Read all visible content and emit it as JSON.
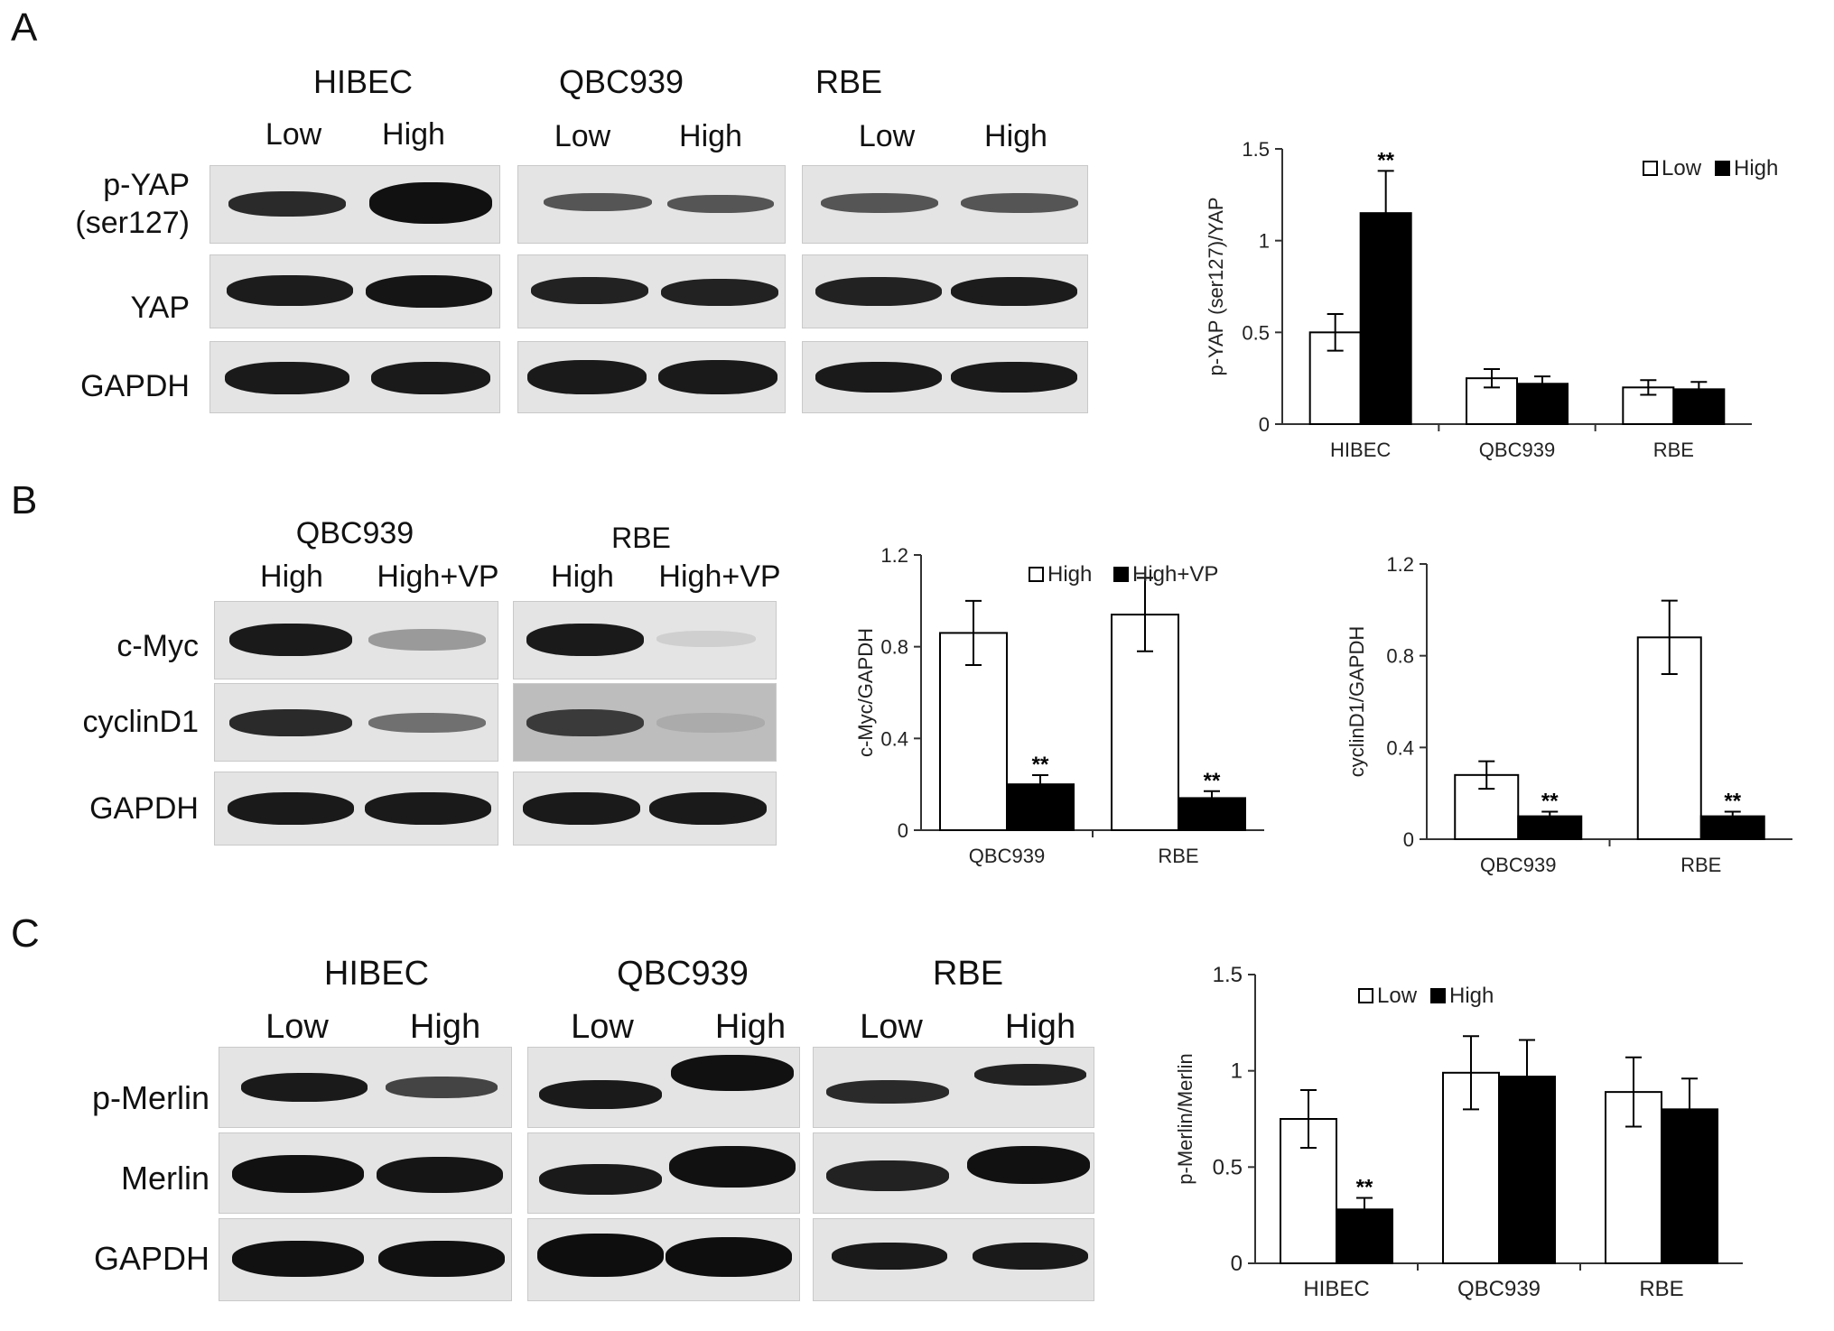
{
  "panels": [
    {
      "letter": "A",
      "groups": [
        {
          "name": "HIBEC",
          "lanes": [
            "Low",
            "High"
          ]
        },
        {
          "name": "QBC939",
          "lanes": [
            "Low",
            "High"
          ]
        },
        {
          "name": "RBE",
          "lanes": [
            "Low",
            "High"
          ]
        }
      ],
      "rows": [
        "p-YAP\n(ser127)",
        "YAP",
        "GAPDH"
      ]
    },
    {
      "letter": "B",
      "groups": [
        {
          "name": "QBC939",
          "lanes": [
            "High",
            "High+VP"
          ]
        },
        {
          "name": "RBE",
          "lanes": [
            "High",
            "High+VP"
          ]
        }
      ],
      "rows": [
        "c-Myc",
        "cyclinD1",
        "GAPDH"
      ]
    },
    {
      "letter": "C",
      "groups": [
        {
          "name": "HIBEC",
          "lanes": [
            "Low",
            "High"
          ]
        },
        {
          "name": "QBC939",
          "lanes": [
            "Low",
            "High"
          ]
        },
        {
          "name": "RBE",
          "lanes": [
            "Low",
            "High"
          ]
        }
      ],
      "rows": [
        "p-Merlin",
        "Merlin",
        "GAPDH"
      ]
    }
  ],
  "colors": {
    "open_bar": "#ffffff",
    "filled_bar": "#000000",
    "axis": "#333333"
  },
  "chart_data": [
    {
      "type": "bar",
      "panel": "A",
      "categories": [
        "HIBEC",
        "QBC939",
        "RBE"
      ],
      "series": [
        {
          "name": "Low",
          "values": [
            0.5,
            0.25,
            0.2
          ],
          "errors": [
            0.1,
            0.05,
            0.04
          ],
          "sig": [
            "",
            "",
            ""
          ]
        },
        {
          "name": "High",
          "values": [
            1.15,
            0.22,
            0.19
          ],
          "errors": [
            0.23,
            0.04,
            0.04
          ],
          "sig": [
            "**",
            "",
            ""
          ]
        }
      ],
      "ylabel": "p-YAP (ser127)/YAP",
      "ylim": [
        0,
        1.5
      ],
      "yticks": [
        "0",
        "0.5",
        "1",
        "1.5"
      ],
      "legend_position": "top-right"
    },
    {
      "type": "bar",
      "panel": "B-left",
      "categories": [
        "QBC939",
        "RBE"
      ],
      "series": [
        {
          "name": "High",
          "values": [
            0.86,
            0.94
          ],
          "errors": [
            0.14,
            0.16
          ],
          "sig": [
            "",
            ""
          ]
        },
        {
          "name": "High+VP",
          "values": [
            0.2,
            0.14
          ],
          "errors": [
            0.04,
            0.03
          ],
          "sig": [
            "**",
            "**"
          ]
        }
      ],
      "ylabel": "c-Myc/GAPDH",
      "ylim": [
        0,
        1.2
      ],
      "yticks": [
        "0",
        "0.4",
        "0.8",
        "1.2"
      ],
      "legend_position": "top-left"
    },
    {
      "type": "bar",
      "panel": "B-right",
      "categories": [
        "QBC939",
        "RBE"
      ],
      "series": [
        {
          "name": "High",
          "values": [
            0.28,
            0.88
          ],
          "errors": [
            0.06,
            0.16
          ],
          "sig": [
            "",
            ""
          ]
        },
        {
          "name": "High+VP",
          "values": [
            0.1,
            0.1
          ],
          "errors": [
            0.02,
            0.02
          ],
          "sig": [
            "**",
            "**"
          ]
        }
      ],
      "ylabel": "cyclinD1/GAPDH",
      "ylim": [
        0,
        1.2
      ],
      "yticks": [
        "0",
        "0.4",
        "0.8",
        "1.2"
      ],
      "legend_position": "none"
    },
    {
      "type": "bar",
      "panel": "C",
      "categories": [
        "HIBEC",
        "QBC939",
        "RBE"
      ],
      "series": [
        {
          "name": "Low",
          "values": [
            0.75,
            0.99,
            0.89
          ],
          "errors": [
            0.15,
            0.19,
            0.18
          ],
          "sig": [
            "",
            "",
            ""
          ]
        },
        {
          "name": "High",
          "values": [
            0.28,
            0.97,
            0.8
          ],
          "errors": [
            0.06,
            0.19,
            0.16
          ],
          "sig": [
            "**",
            "",
            ""
          ]
        }
      ],
      "ylabel": "p-Merlin/Merlin",
      "ylim": [
        0,
        1.5
      ],
      "yticks": [
        "0",
        "0.5",
        "1",
        "1.5"
      ],
      "legend_position": "top-left"
    }
  ]
}
